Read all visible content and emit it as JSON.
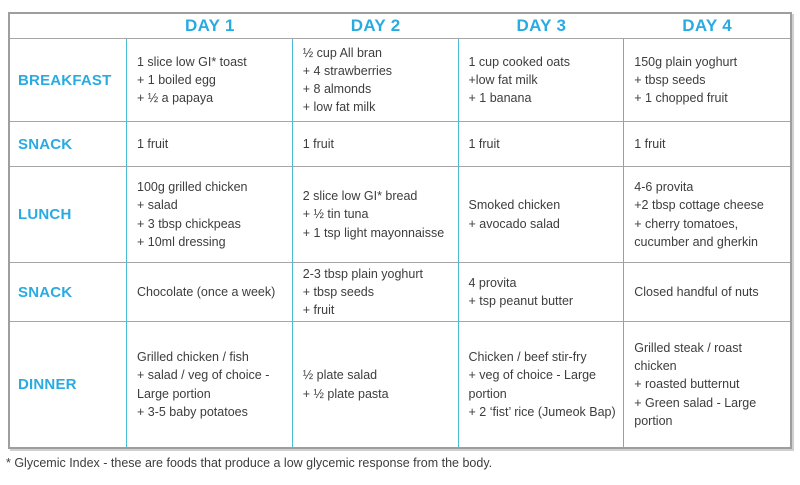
{
  "colors": {
    "accent": "#29abe2",
    "divider": "#49bdd5",
    "grid": "#a6a6a6",
    "text": "#3d3d3d"
  },
  "table": {
    "header": {
      "corner": "",
      "days": [
        "DAY 1",
        "DAY 2",
        "DAY 3",
        "DAY 4"
      ]
    },
    "rows": [
      {
        "label": "BREAKFAST",
        "cells": [
          [
            "1 slice low GI* toast",
            "+ 1 boiled egg",
            "+ ½ a papaya"
          ],
          [
            "½ cup All bran",
            "+ 4 strawberries",
            "+ 8 almonds",
            "+ low fat milk"
          ],
          [
            "1 cup cooked oats",
            "+low fat milk",
            "+ 1 banana"
          ],
          [
            "150g plain yoghurt",
            "+ tbsp seeds",
            "+ 1 chopped fruit"
          ]
        ]
      },
      {
        "label": "SNACK",
        "cells": [
          [
            "1 fruit"
          ],
          [
            "1 fruit"
          ],
          [
            "1 fruit"
          ],
          [
            "1 fruit"
          ]
        ]
      },
      {
        "label": "LUNCH",
        "cells": [
          [
            "100g grilled chicken",
            "+ salad",
            "+ 3 tbsp chickpeas",
            "+ 10ml dressing"
          ],
          [
            "2 slice low GI* bread",
            "+ ½ tin tuna",
            "+ 1 tsp light mayonnaisse"
          ],
          [
            "Smoked chicken",
            "+ avocado salad"
          ],
          [
            "4-6 provita",
            "+2 tbsp cottage cheese",
            "+ cherry tomatoes,",
            "cucumber and gherkin"
          ]
        ]
      },
      {
        "label": "SNACK",
        "cells": [
          [
            "Chocolate (once a week)"
          ],
          [
            "2-3 tbsp plain yoghurt",
            "+ tbsp seeds",
            "+ fruit"
          ],
          [
            "4 provita",
            "+ tsp peanut butter"
          ],
          [
            "Closed handful of nuts"
          ]
        ]
      },
      {
        "label": "DINNER",
        "cells": [
          [
            "Grilled chicken / fish",
            "+ salad / veg of choice -",
            "Large portion",
            "+ 3-5 baby potatoes"
          ],
          [
            "½ plate salad",
            "+ ½ plate pasta"
          ],
          [
            "Chicken / beef stir-fry",
            "+ veg of choice - Large",
            "portion",
            "+ 2 ‘fist’ rice (Jumeok Bap)"
          ],
          [
            "Grilled steak / roast",
            "chicken",
            "+ roasted butternut",
            "+ Green salad - Large",
            "portion"
          ]
        ]
      }
    ]
  },
  "footnote": "* Glycemic Index - these are foods that produce a low glycemic response from the body."
}
